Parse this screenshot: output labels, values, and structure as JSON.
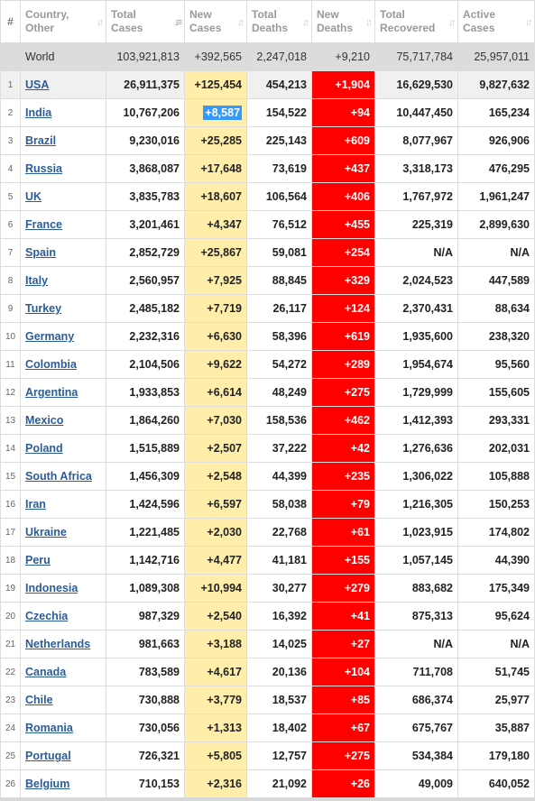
{
  "headers": {
    "rank": "#",
    "country": [
      "Country,",
      "Other"
    ],
    "total_cases": [
      "Total",
      "Cases"
    ],
    "new_cases": [
      "New",
      "Cases"
    ],
    "total_deaths": [
      "Total",
      "Deaths"
    ],
    "new_deaths": [
      "New",
      "Deaths"
    ],
    "total_recovered": [
      "Total",
      "Recovered"
    ],
    "active_cases": [
      "Active",
      "Cases"
    ]
  },
  "sort_glyphs": {
    "inactive": "↓↑",
    "active": "↓≡"
  },
  "world": {
    "name": "World",
    "total_cases": "103,921,813",
    "new_cases": "+392,565",
    "total_deaths": "2,247,018",
    "new_deaths": "+9,210",
    "total_recovered": "75,717,784",
    "active_cases": "25,957,011"
  },
  "rows": [
    {
      "rank": "1",
      "country": "USA",
      "total_cases": "26,911,375",
      "new_cases": "+125,454",
      "total_deaths": "454,213",
      "new_deaths": "+1,904",
      "total_recovered": "16,629,530",
      "active_cases": "9,827,632"
    },
    {
      "rank": "2",
      "country": "India",
      "total_cases": "10,767,206",
      "new_cases": "+8,587",
      "total_deaths": "154,522",
      "new_deaths": "+94",
      "total_recovered": "10,447,450",
      "active_cases": "165,234"
    },
    {
      "rank": "3",
      "country": "Brazil",
      "total_cases": "9,230,016",
      "new_cases": "+25,285",
      "total_deaths": "225,143",
      "new_deaths": "+609",
      "total_recovered": "8,077,967",
      "active_cases": "926,906"
    },
    {
      "rank": "4",
      "country": "Russia",
      "total_cases": "3,868,087",
      "new_cases": "+17,648",
      "total_deaths": "73,619",
      "new_deaths": "+437",
      "total_recovered": "3,318,173",
      "active_cases": "476,295"
    },
    {
      "rank": "5",
      "country": "UK",
      "total_cases": "3,835,783",
      "new_cases": "+18,607",
      "total_deaths": "106,564",
      "new_deaths": "+406",
      "total_recovered": "1,767,972",
      "active_cases": "1,961,247"
    },
    {
      "rank": "6",
      "country": "France",
      "total_cases": "3,201,461",
      "new_cases": "+4,347",
      "total_deaths": "76,512",
      "new_deaths": "+455",
      "total_recovered": "225,319",
      "active_cases": "2,899,630"
    },
    {
      "rank": "7",
      "country": "Spain",
      "total_cases": "2,852,729",
      "new_cases": "+25,867",
      "total_deaths": "59,081",
      "new_deaths": "+254",
      "total_recovered": "N/A",
      "active_cases": "N/A"
    },
    {
      "rank": "8",
      "country": "Italy",
      "total_cases": "2,560,957",
      "new_cases": "+7,925",
      "total_deaths": "88,845",
      "new_deaths": "+329",
      "total_recovered": "2,024,523",
      "active_cases": "447,589"
    },
    {
      "rank": "9",
      "country": "Turkey",
      "total_cases": "2,485,182",
      "new_cases": "+7,719",
      "total_deaths": "26,117",
      "new_deaths": "+124",
      "total_recovered": "2,370,431",
      "active_cases": "88,634"
    },
    {
      "rank": "10",
      "country": "Germany",
      "total_cases": "2,232,316",
      "new_cases": "+6,630",
      "total_deaths": "58,396",
      "new_deaths": "+619",
      "total_recovered": "1,935,600",
      "active_cases": "238,320"
    },
    {
      "rank": "11",
      "country": "Colombia",
      "total_cases": "2,104,506",
      "new_cases": "+9,622",
      "total_deaths": "54,272",
      "new_deaths": "+289",
      "total_recovered": "1,954,674",
      "active_cases": "95,560"
    },
    {
      "rank": "12",
      "country": "Argentina",
      "total_cases": "1,933,853",
      "new_cases": "+6,614",
      "total_deaths": "48,249",
      "new_deaths": "+275",
      "total_recovered": "1,729,999",
      "active_cases": "155,605"
    },
    {
      "rank": "13",
      "country": "Mexico",
      "total_cases": "1,864,260",
      "new_cases": "+7,030",
      "total_deaths": "158,536",
      "new_deaths": "+462",
      "total_recovered": "1,412,393",
      "active_cases": "293,331"
    },
    {
      "rank": "14",
      "country": "Poland",
      "total_cases": "1,515,889",
      "new_cases": "+2,507",
      "total_deaths": "37,222",
      "new_deaths": "+42",
      "total_recovered": "1,276,636",
      "active_cases": "202,031"
    },
    {
      "rank": "15",
      "country": "South Africa",
      "total_cases": "1,456,309",
      "new_cases": "+2,548",
      "total_deaths": "44,399",
      "new_deaths": "+235",
      "total_recovered": "1,306,022",
      "active_cases": "105,888"
    },
    {
      "rank": "16",
      "country": "Iran",
      "total_cases": "1,424,596",
      "new_cases": "+6,597",
      "total_deaths": "58,038",
      "new_deaths": "+79",
      "total_recovered": "1,216,305",
      "active_cases": "150,253"
    },
    {
      "rank": "17",
      "country": "Ukraine",
      "total_cases": "1,221,485",
      "new_cases": "+2,030",
      "total_deaths": "22,768",
      "new_deaths": "+61",
      "total_recovered": "1,023,915",
      "active_cases": "174,802"
    },
    {
      "rank": "18",
      "country": "Peru",
      "total_cases": "1,142,716",
      "new_cases": "+4,477",
      "total_deaths": "41,181",
      "new_deaths": "+155",
      "total_recovered": "1,057,145",
      "active_cases": "44,390"
    },
    {
      "rank": "19",
      "country": "Indonesia",
      "total_cases": "1,089,308",
      "new_cases": "+10,994",
      "total_deaths": "30,277",
      "new_deaths": "+279",
      "total_recovered": "883,682",
      "active_cases": "175,349"
    },
    {
      "rank": "20",
      "country": "Czechia",
      "total_cases": "987,329",
      "new_cases": "+2,540",
      "total_deaths": "16,392",
      "new_deaths": "+41",
      "total_recovered": "875,313",
      "active_cases": "95,624"
    },
    {
      "rank": "21",
      "country": "Netherlands",
      "total_cases": "981,663",
      "new_cases": "+3,188",
      "total_deaths": "14,025",
      "new_deaths": "+27",
      "total_recovered": "N/A",
      "active_cases": "N/A"
    },
    {
      "rank": "22",
      "country": "Canada",
      "total_cases": "783,589",
      "new_cases": "+4,617",
      "total_deaths": "20,136",
      "new_deaths": "+104",
      "total_recovered": "711,708",
      "active_cases": "51,745"
    },
    {
      "rank": "23",
      "country": "Chile",
      "total_cases": "730,888",
      "new_cases": "+3,779",
      "total_deaths": "18,537",
      "new_deaths": "+85",
      "total_recovered": "686,374",
      "active_cases": "25,977"
    },
    {
      "rank": "24",
      "country": "Romania",
      "total_cases": "730,056",
      "new_cases": "+1,313",
      "total_deaths": "18,402",
      "new_deaths": "+67",
      "total_recovered": "675,767",
      "active_cases": "35,887"
    },
    {
      "rank": "25",
      "country": "Portugal",
      "total_cases": "726,321",
      "new_cases": "+5,805",
      "total_deaths": "12,757",
      "new_deaths": "+275",
      "total_recovered": "534,384",
      "active_cases": "179,180"
    },
    {
      "rank": "26",
      "country": "Belgium",
      "total_cases": "710,153",
      "new_cases": "+2,316",
      "total_deaths": "21,092",
      "new_deaths": "+26",
      "total_recovered": "49,009",
      "active_cases": "640,052"
    }
  ],
  "colors": {
    "new_cases_bg": "#ffeeaa",
    "new_deaths_bg": "#ff0000",
    "world_row_bg": "#dcdcdc",
    "link": "#2a5d99",
    "selection": "#3399ff"
  },
  "selected_cell": {
    "row": "2",
    "column": "new_cases"
  }
}
